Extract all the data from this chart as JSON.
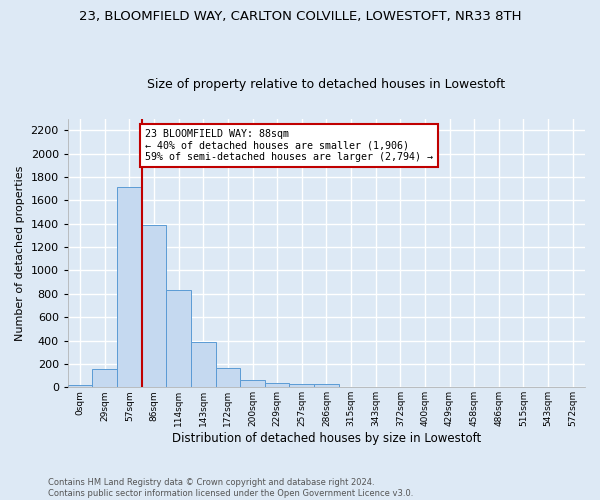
{
  "title": "23, BLOOMFIELD WAY, CARLTON COLVILLE, LOWESTOFT, NR33 8TH",
  "subtitle": "Size of property relative to detached houses in Lowestoft",
  "xlabel": "Distribution of detached houses by size in Lowestoft",
  "ylabel": "Number of detached properties",
  "bin_labels": [
    "0sqm",
    "29sqm",
    "57sqm",
    "86sqm",
    "114sqm",
    "143sqm",
    "172sqm",
    "200sqm",
    "229sqm",
    "257sqm",
    "286sqm",
    "315sqm",
    "343sqm",
    "372sqm",
    "400sqm",
    "429sqm",
    "458sqm",
    "486sqm",
    "515sqm",
    "543sqm",
    "572sqm"
  ],
  "bar_values": [
    20,
    155,
    1710,
    1390,
    835,
    385,
    165,
    65,
    35,
    30,
    28,
    0,
    0,
    0,
    0,
    0,
    0,
    0,
    0,
    0,
    0
  ],
  "bar_color": "#c5d9f0",
  "bar_edge_color": "#5b9bd5",
  "ylim": [
    0,
    2300
  ],
  "yticks": [
    0,
    200,
    400,
    600,
    800,
    1000,
    1200,
    1400,
    1600,
    1800,
    2000,
    2200
  ],
  "property_bin_index": 3,
  "vline_color": "#c00000",
  "annotation_text": "23 BLOOMFIELD WAY: 88sqm\n← 40% of detached houses are smaller (1,906)\n59% of semi-detached houses are larger (2,794) →",
  "annotation_box_color": "#ffffff",
  "annotation_box_edge": "#c00000",
  "footer_line1": "Contains HM Land Registry data © Crown copyright and database right 2024.",
  "footer_line2": "Contains public sector information licensed under the Open Government Licence v3.0.",
  "background_color": "#dde9f5",
  "plot_bg_color": "#dde9f5",
  "grid_color": "#ffffff",
  "title_fontsize": 9.5,
  "subtitle_fontsize": 9
}
